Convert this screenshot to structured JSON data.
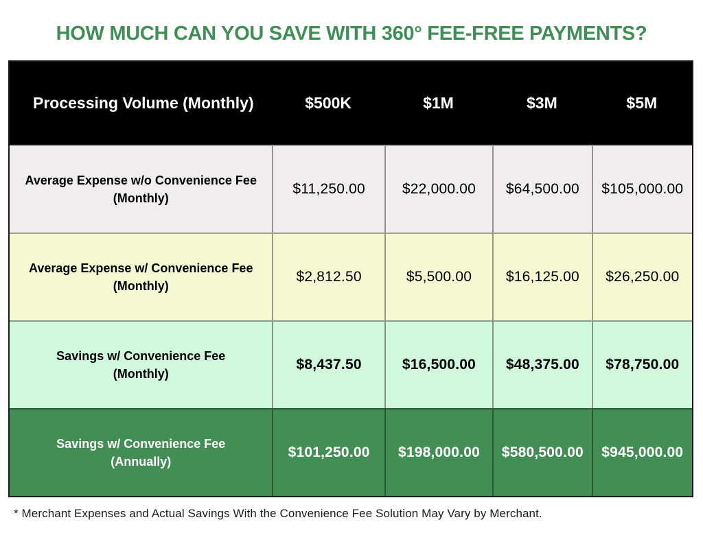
{
  "title": "HOW MUCH CAN YOU SAVE WITH 360° FEE-FREE PAYMENTS?",
  "colors": {
    "title_green": "#3E8E55",
    "header_bg": "#000000",
    "row_gray": "#EFEDEE",
    "row_yellow": "#F5F9D1",
    "row_mint": "#D0F8DC",
    "row_dark_green": "#428E55",
    "outer_border": "#1b1b1b"
  },
  "table": {
    "header": {
      "corner": "Processing Volume (Monthly)",
      "columns": [
        "$500K",
        "$1M",
        "$3M",
        "$5M"
      ]
    },
    "rows": [
      {
        "label": [
          "Average Expense w/o Convenience Fee",
          "(Monthly)"
        ],
        "values": [
          "$11,250.00",
          "$22,000.00",
          "$64,500.00",
          "$105,000.00"
        ]
      },
      {
        "label": [
          "Average Expense w/ Convenience Fee",
          "(Monthly)"
        ],
        "values": [
          "$2,812.50",
          "$5,500.00",
          "$16,125.00",
          "$26,250.00"
        ]
      },
      {
        "label": [
          "Savings w/ Convenience Fee",
          "(Monthly)"
        ],
        "values": [
          "$8,437.50",
          "$16,500.00",
          "$48,375.00",
          "$78,750.00"
        ]
      },
      {
        "label": [
          "Savings w/ Convenience Fee",
          "(Annually)"
        ],
        "values": [
          "$101,250.00",
          "$198,000.00",
          "$580,500.00",
          "$945,000.00"
        ]
      }
    ]
  },
  "footnote": "* Merchant Expenses and Actual Savings With the Convenience Fee Solution May Vary by Merchant.",
  "chart_data": {
    "type": "table",
    "title": "HOW MUCH CAN YOU SAVE WITH 360° FEE-FREE PAYMENTS?",
    "columns": [
      "Processing Volume (Monthly)",
      "$500K",
      "$1M",
      "$3M",
      "$5M"
    ],
    "rows": [
      {
        "label": "Average Expense w/o Convenience Fee (Monthly)",
        "values": [
          11250.0,
          22000.0,
          64500.0,
          105000.0
        ]
      },
      {
        "label": "Average Expense w/ Convenience Fee (Monthly)",
        "values": [
          2812.5,
          5500.0,
          16125.0,
          26250.0
        ]
      },
      {
        "label": "Savings w/ Convenience Fee (Monthly)",
        "values": [
          8437.5,
          16500.0,
          48375.0,
          78750.0
        ]
      },
      {
        "label": "Savings w/ Convenience Fee (Annually)",
        "values": [
          101250.0,
          198000.0,
          580500.0,
          945000.0
        ]
      }
    ],
    "footnote": "* Merchant Expenses and Actual Savings With the Convenience Fee Solution May Vary by Merchant."
  }
}
